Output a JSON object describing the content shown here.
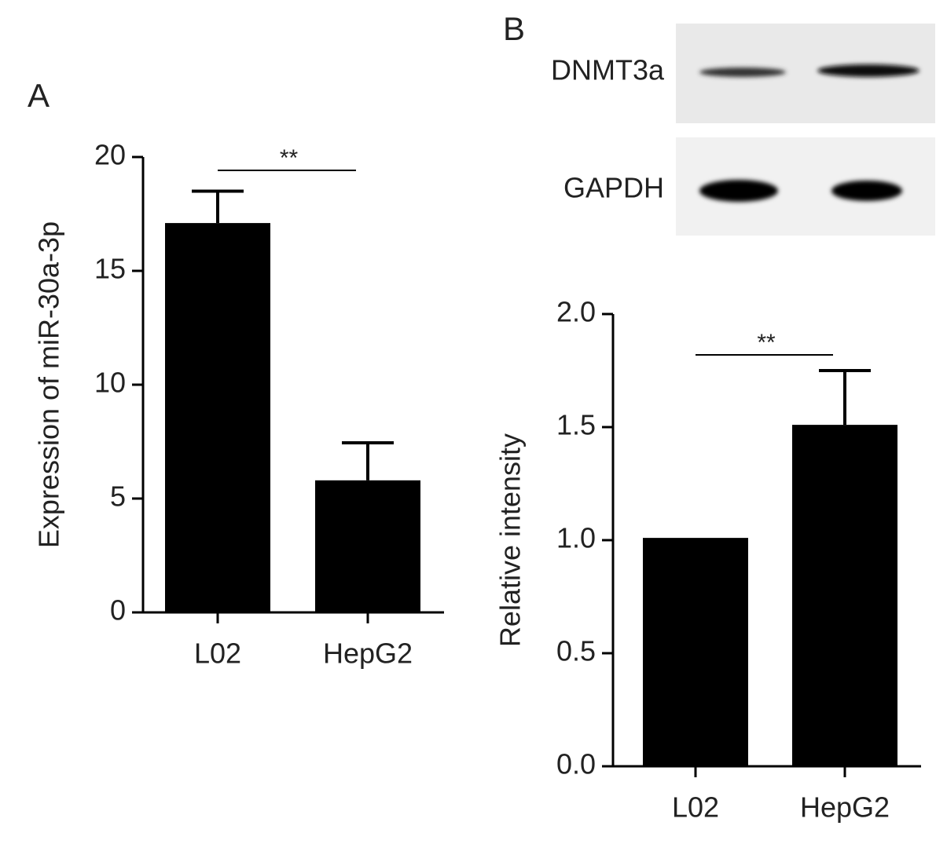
{
  "chart_data": [
    {
      "type": "bar",
      "panel_label": "A",
      "ylabel": "Expression of miR-30a-3p",
      "categories": [
        "L02",
        "HepG2"
      ],
      "values": [
        17.1,
        5.8
      ],
      "errors": [
        1.4,
        1.65
      ],
      "color": "#000000",
      "ylim": [
        0,
        20
      ],
      "yticks": [
        0,
        5,
        10,
        15,
        20
      ],
      "annotation": "**"
    },
    {
      "type": "bar",
      "panel_label": "B",
      "ylabel": "Relative intensity",
      "blot_labels": [
        "DNMT3a",
        "GAPDH"
      ],
      "categories": [
        "L02",
        "HepG2"
      ],
      "values": [
        1.01,
        1.51
      ],
      "errors": [
        0,
        0.24
      ],
      "color": "#000000",
      "ylim": [
        0,
        2
      ],
      "yticks": [
        {
          "value": 0,
          "label": "0.0"
        },
        {
          "value": 0.5,
          "label": "0.5"
        },
        {
          "value": 1,
          "label": "1.0"
        },
        {
          "value": 1.5,
          "label": "1.5"
        },
        {
          "value": 2,
          "label": "2.0"
        }
      ],
      "annotation": "**"
    }
  ]
}
